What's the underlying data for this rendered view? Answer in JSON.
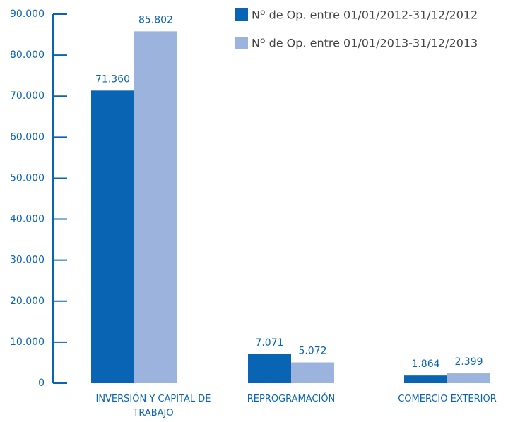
{
  "chart_data": {
    "type": "bar",
    "categories": [
      "INVERSIÓN Y CAPITAL DE TRABAJO",
      "REPROGRAMACIÓN",
      "COMERCIO EXTERIOR"
    ],
    "series": [
      {
        "name": "Nº de Op. entre 01/01/2012-31/12/2012",
        "color": "#0a64b4",
        "values": [
          71360,
          7071,
          1864
        ],
        "value_labels": [
          "71.360",
          "7.071",
          "1.864"
        ]
      },
      {
        "name": "Nº de Op. entre 01/01/2013-31/12/2013",
        "color": "#9bb3dd",
        "values": [
          85802,
          5072,
          2399
        ],
        "value_labels": [
          "85.802",
          "5.072",
          "2.399"
        ]
      }
    ],
    "ylim": [
      0,
      90000
    ],
    "yticks": [
      0,
      {
        "value": 10000,
        "label": "10.000"
      },
      {
        "value": 20000,
        "label": "20.000"
      },
      {
        "value": 30000,
        "label": "30.000"
      },
      {
        "value": 40000,
        "label": "40.000"
      },
      {
        "value": 50000,
        "label": "50.000"
      },
      {
        "value": 60000,
        "label": "60.000"
      },
      {
        "value": 70000,
        "label": "70.000"
      },
      {
        "value": 80000,
        "label": "80.000"
      },
      {
        "value": 90000,
        "label": "90.000"
      }
    ],
    "legend": "top-right"
  }
}
